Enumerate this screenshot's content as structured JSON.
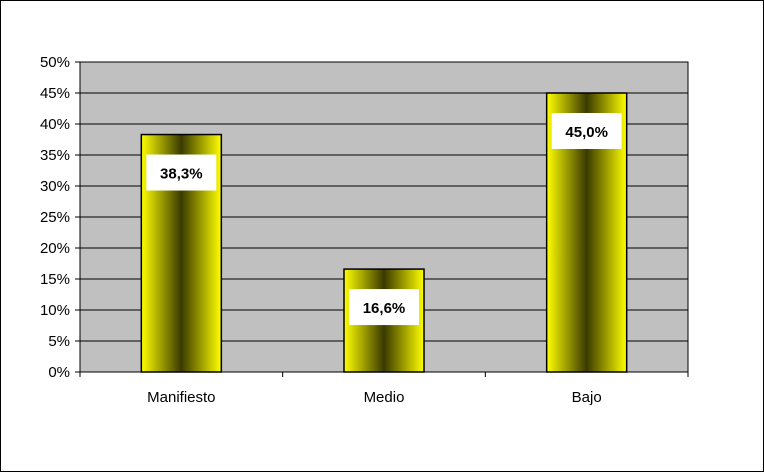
{
  "chart_data": {
    "type": "bar",
    "categories": [
      "Manifiesto",
      "Medio",
      "Bajo"
    ],
    "values": [
      38.3,
      16.6,
      45.0
    ],
    "data_labels": [
      "38,3%",
      "16,6%",
      "45,0%"
    ],
    "y_ticks": [
      "0%",
      "5%",
      "10%",
      "15%",
      "20%",
      "25%",
      "30%",
      "35%",
      "40%",
      "45%",
      "50%"
    ],
    "ylim": [
      0,
      50
    ],
    "grid": true,
    "legend": "none",
    "title": "",
    "xlabel": "",
    "ylabel": "",
    "colors": {
      "plot_background": "#c0c0c0",
      "bar_light": "#ffff00",
      "bar_dark": "#3a3a00",
      "bar_outline": "#000000",
      "gridline": "#000000",
      "label_box": "#ffffff"
    }
  }
}
